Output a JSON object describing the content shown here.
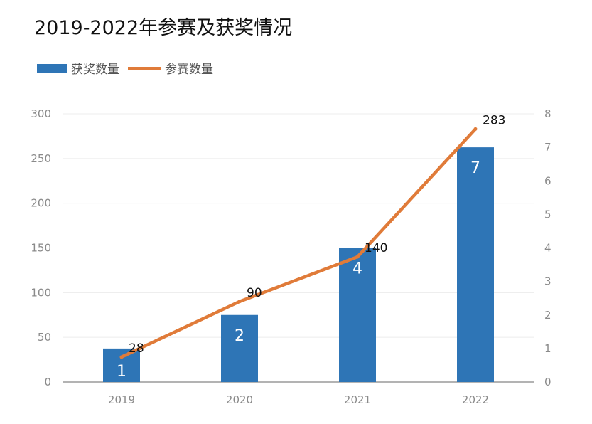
{
  "chart_data": {
    "type": "bar",
    "title": "2019-2022年参赛及获奖情况",
    "categories": [
      "2019",
      "2020",
      "2021",
      "2022"
    ],
    "left_axis": {
      "ylim": [
        0,
        300
      ],
      "ticks": [
        0,
        50,
        100,
        150,
        200,
        250,
        300
      ]
    },
    "right_axis": {
      "ylim": [
        0,
        8
      ],
      "ticks": [
        0,
        1,
        2,
        3,
        4,
        5,
        6,
        7,
        8
      ]
    },
    "legend_position": "top-left",
    "grid": true,
    "series": [
      {
        "name": "获奖数量",
        "type": "bar",
        "axis": "right",
        "color": "#2E75B6",
        "values": [
          1,
          2,
          4,
          7
        ],
        "labels": [
          "1",
          "2",
          "4",
          "7"
        ]
      },
      {
        "name": "参赛数量",
        "type": "line",
        "axis": "left",
        "color": "#E07B39",
        "values": [
          28,
          90,
          140,
          283
        ],
        "labels": [
          "28",
          "90",
          "140",
          "283"
        ]
      }
    ]
  }
}
